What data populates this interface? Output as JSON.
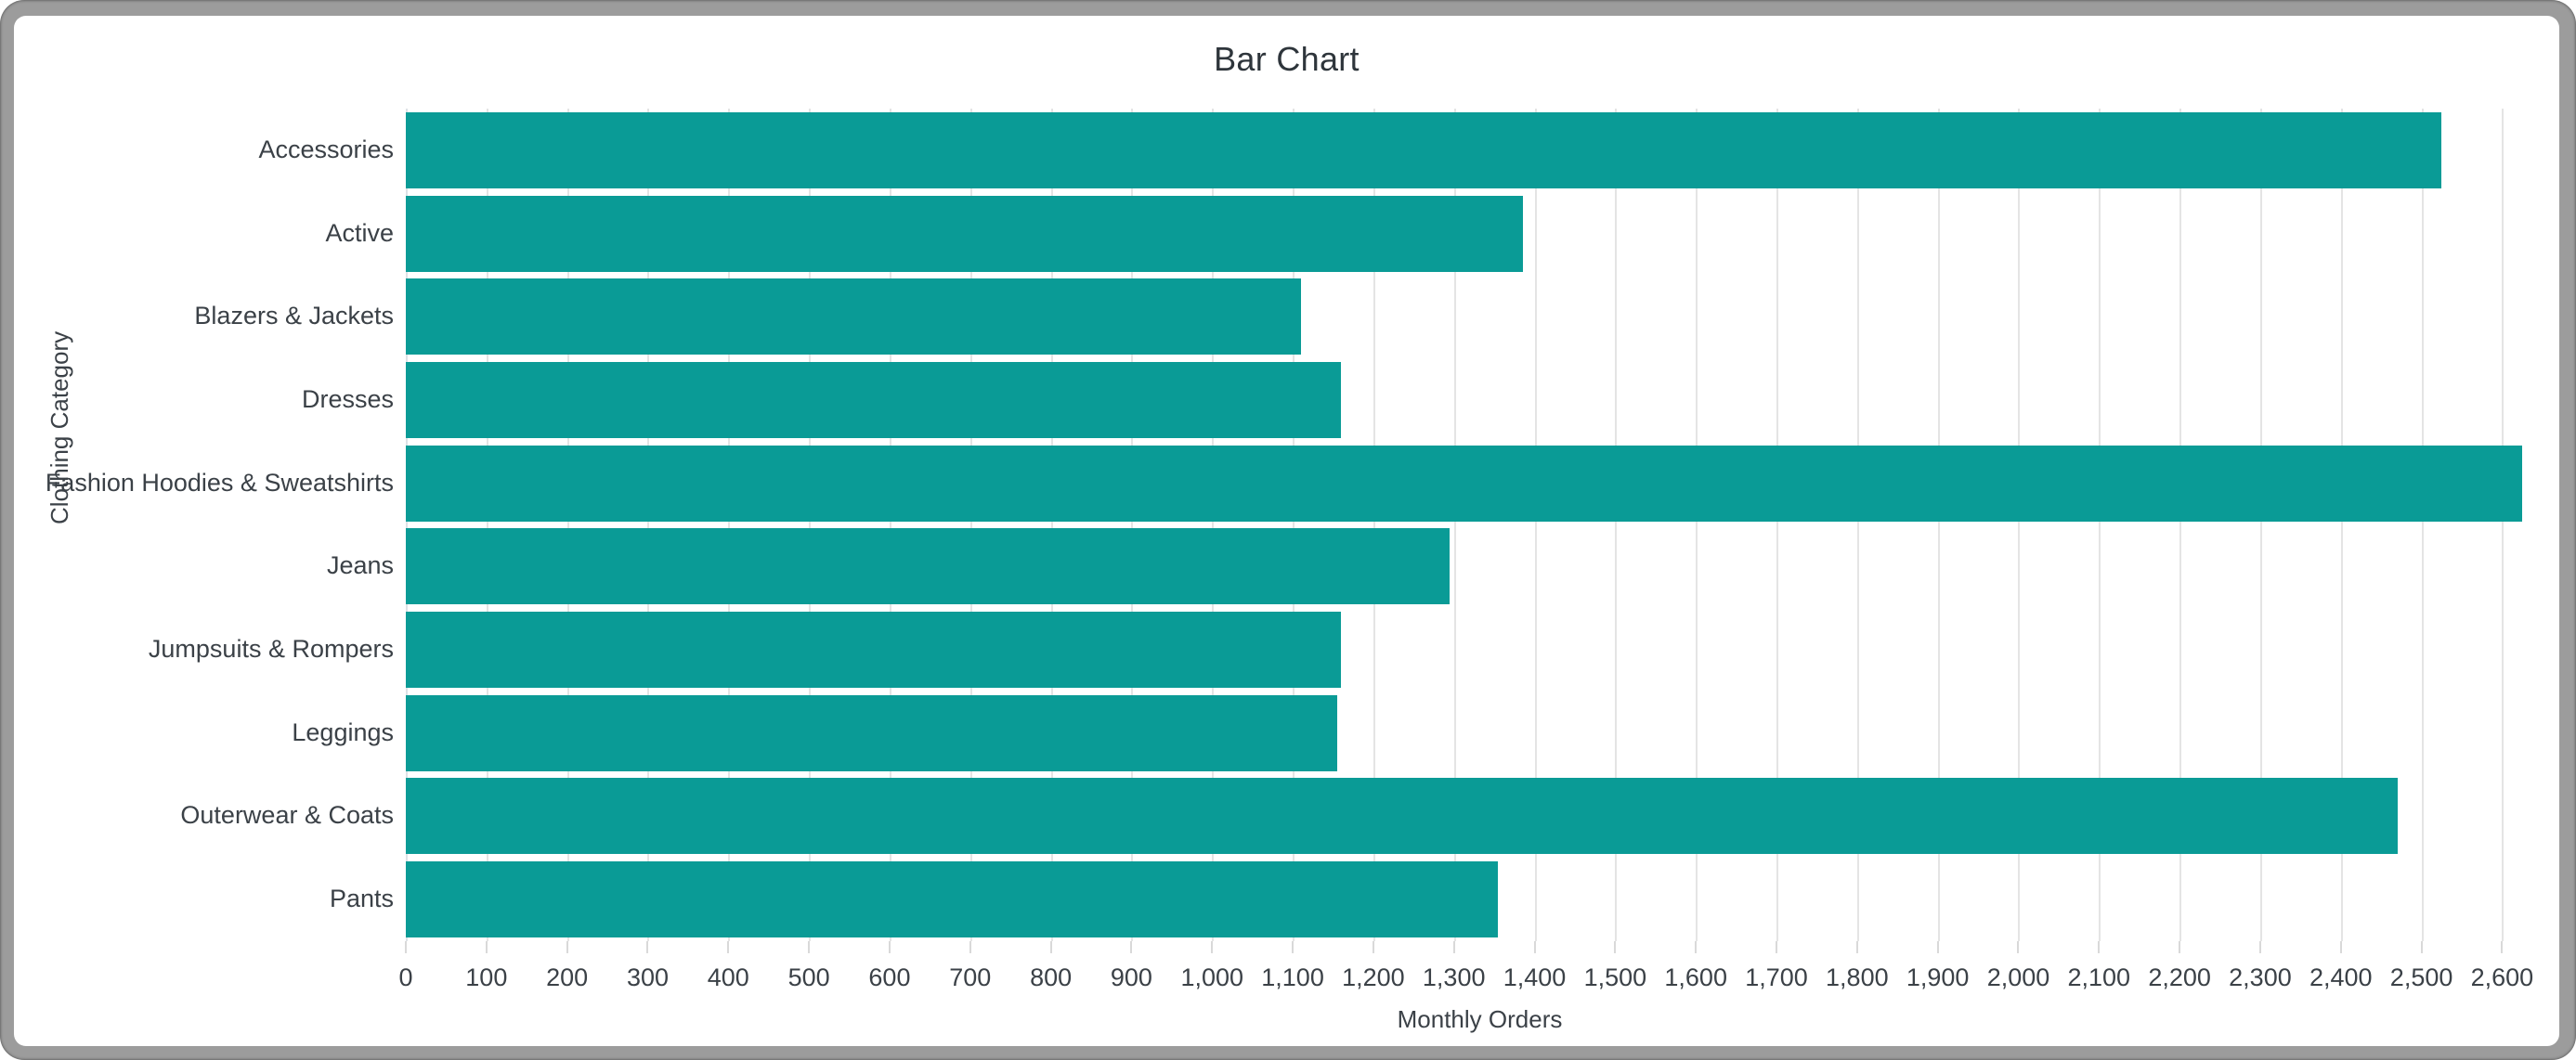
{
  "window": {
    "frame_color": "#9c9c9c",
    "background_color": "#ffffff"
  },
  "chart_data": {
    "type": "bar",
    "orientation": "horizontal",
    "title": "Bar Chart",
    "xlabel": "Monthly Orders",
    "ylabel": "Clothing Category",
    "categories": [
      "Accessories",
      "Active",
      "Blazers & Jackets",
      "Dresses",
      "Fashion Hoodies & Sweatshirts",
      "Jeans",
      "Jumpsuits & Rompers",
      "Leggings",
      "Outerwear & Coats",
      "Pants"
    ],
    "values": [
      2525,
      1385,
      1110,
      1160,
      2625,
      1295,
      1160,
      1155,
      2470,
      1355
    ],
    "xlim": [
      0,
      2664
    ],
    "xticks": {
      "start": 0,
      "end": 2600,
      "step": 100,
      "format": "thousands-comma"
    },
    "grid": true,
    "legend": false,
    "bar_color": "#0a9b96",
    "gridline_color": "#e4e4e4",
    "zeroline_color": "#dde2e6",
    "tick_color": "#3b4147",
    "title_color": "#2e353b"
  }
}
